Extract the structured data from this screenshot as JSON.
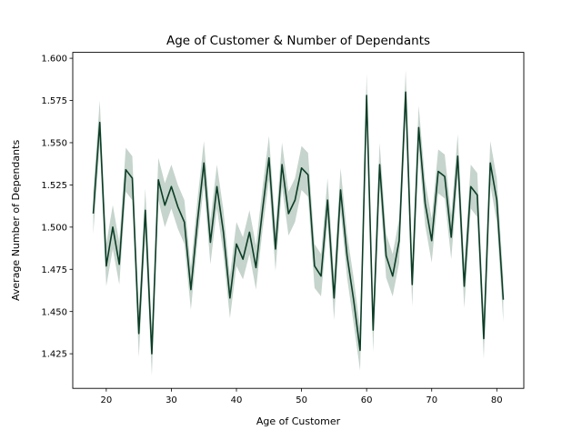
{
  "chart_data": {
    "type": "line",
    "title": "Age of Customer & Number of Dependants",
    "xlabel": "Age of Customer",
    "ylabel": "Average Number of Dependants",
    "xlim": [
      14.85,
      84.15
    ],
    "ylim": [
      1.4045,
      1.6035
    ],
    "xticks": [
      20,
      30,
      40,
      50,
      60,
      70,
      80
    ],
    "yticks": [
      1.425,
      1.45,
      1.475,
      1.5,
      1.525,
      1.55,
      1.575,
      1.6
    ],
    "ytick_labels": [
      "1.425",
      "1.450",
      "1.475",
      "1.500",
      "1.525",
      "1.550",
      "1.575",
      "1.600"
    ],
    "grid": false,
    "legend": null,
    "colors": {
      "line": "#0b3d26",
      "band": "#7f9f8f"
    },
    "series": [
      {
        "x": [
          18,
          19,
          20,
          21,
          22,
          23,
          24,
          25,
          26,
          27,
          28,
          29,
          30,
          31,
          32,
          33,
          34,
          35,
          36,
          37,
          38,
          39,
          40,
          41,
          42,
          43,
          44,
          45,
          46,
          47,
          48,
          49,
          50,
          51,
          52,
          53,
          54,
          55,
          56,
          57,
          58,
          59,
          60,
          61,
          62,
          63,
          64,
          65,
          66,
          67,
          68,
          69,
          70,
          71,
          72,
          73,
          74,
          75,
          76,
          77,
          78,
          79,
          80,
          81
        ],
        "values": [
          1.508,
          1.562,
          1.477,
          1.5,
          1.478,
          1.534,
          1.529,
          1.437,
          1.51,
          1.425,
          1.528,
          1.513,
          1.524,
          1.512,
          1.503,
          1.463,
          1.503,
          1.538,
          1.491,
          1.524,
          1.497,
          1.458,
          1.49,
          1.481,
          1.497,
          1.476,
          1.51,
          1.541,
          1.487,
          1.537,
          1.508,
          1.516,
          1.535,
          1.531,
          1.477,
          1.471,
          1.516,
          1.458,
          1.522,
          1.483,
          1.457,
          1.427,
          1.578,
          1.439,
          1.537,
          1.483,
          1.471,
          1.492,
          1.58,
          1.466,
          1.559,
          1.514,
          1.492,
          1.533,
          1.53,
          1.494,
          1.542,
          1.465,
          1.524,
          1.519,
          1.434,
          1.538,
          1.516,
          1.457
        ],
        "ci_low": [
          1.496,
          1.549,
          1.465,
          1.487,
          1.466,
          1.521,
          1.516,
          1.423,
          1.497,
          1.412,
          1.516,
          1.5,
          1.511,
          1.499,
          1.49,
          1.451,
          1.491,
          1.525,
          1.478,
          1.511,
          1.484,
          1.446,
          1.477,
          1.469,
          1.484,
          1.463,
          1.498,
          1.528,
          1.474,
          1.524,
          1.495,
          1.503,
          1.522,
          1.518,
          1.464,
          1.459,
          1.503,
          1.445,
          1.51,
          1.47,
          1.443,
          1.415,
          1.565,
          1.426,
          1.524,
          1.47,
          1.459,
          1.479,
          1.567,
          1.453,
          1.546,
          1.501,
          1.479,
          1.52,
          1.517,
          1.481,
          1.529,
          1.452,
          1.511,
          1.506,
          1.422,
          1.525,
          1.503,
          1.444
        ],
        "ci_high": [
          1.521,
          1.575,
          1.49,
          1.513,
          1.491,
          1.547,
          1.542,
          1.45,
          1.523,
          1.438,
          1.541,
          1.526,
          1.537,
          1.525,
          1.516,
          1.476,
          1.516,
          1.551,
          1.504,
          1.537,
          1.51,
          1.471,
          1.503,
          1.494,
          1.51,
          1.489,
          1.523,
          1.554,
          1.5,
          1.55,
          1.521,
          1.529,
          1.548,
          1.544,
          1.49,
          1.484,
          1.529,
          1.471,
          1.535,
          1.496,
          1.47,
          1.44,
          1.591,
          1.452,
          1.55,
          1.496,
          1.484,
          1.505,
          1.593,
          1.479,
          1.572,
          1.527,
          1.505,
          1.546,
          1.543,
          1.507,
          1.555,
          1.478,
          1.537,
          1.532,
          1.447,
          1.551,
          1.529,
          1.47
        ]
      }
    ]
  }
}
